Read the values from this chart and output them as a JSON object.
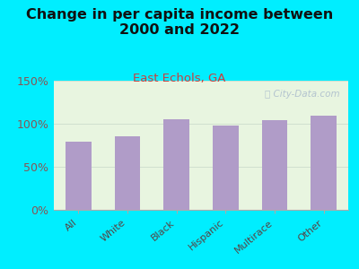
{
  "title": "Change in per capita income between\n2000 and 2022",
  "subtitle": "East Echols, GA",
  "categories": [
    "All",
    "White",
    "Black",
    "Hispanic",
    "Multirace",
    "Other"
  ],
  "values": [
    79,
    85,
    105,
    98,
    104,
    109
  ],
  "bar_color": "#b09cc8",
  "background_outer": "#00eeff",
  "background_inner": "#dff0d8",
  "title_color": "#111111",
  "subtitle_color": "#c84040",
  "ytick_color": "#885555",
  "xtick_color": "#554444",
  "ylim": [
    0,
    150
  ],
  "yticks": [
    0,
    50,
    100,
    150
  ],
  "ytick_labels": [
    "0%",
    "50%",
    "100%",
    "150%"
  ],
  "watermark": "ⓘ City-Data.com",
  "watermark_color": "#aabbcc",
  "title_fontsize": 11.5,
  "subtitle_fontsize": 9.5
}
